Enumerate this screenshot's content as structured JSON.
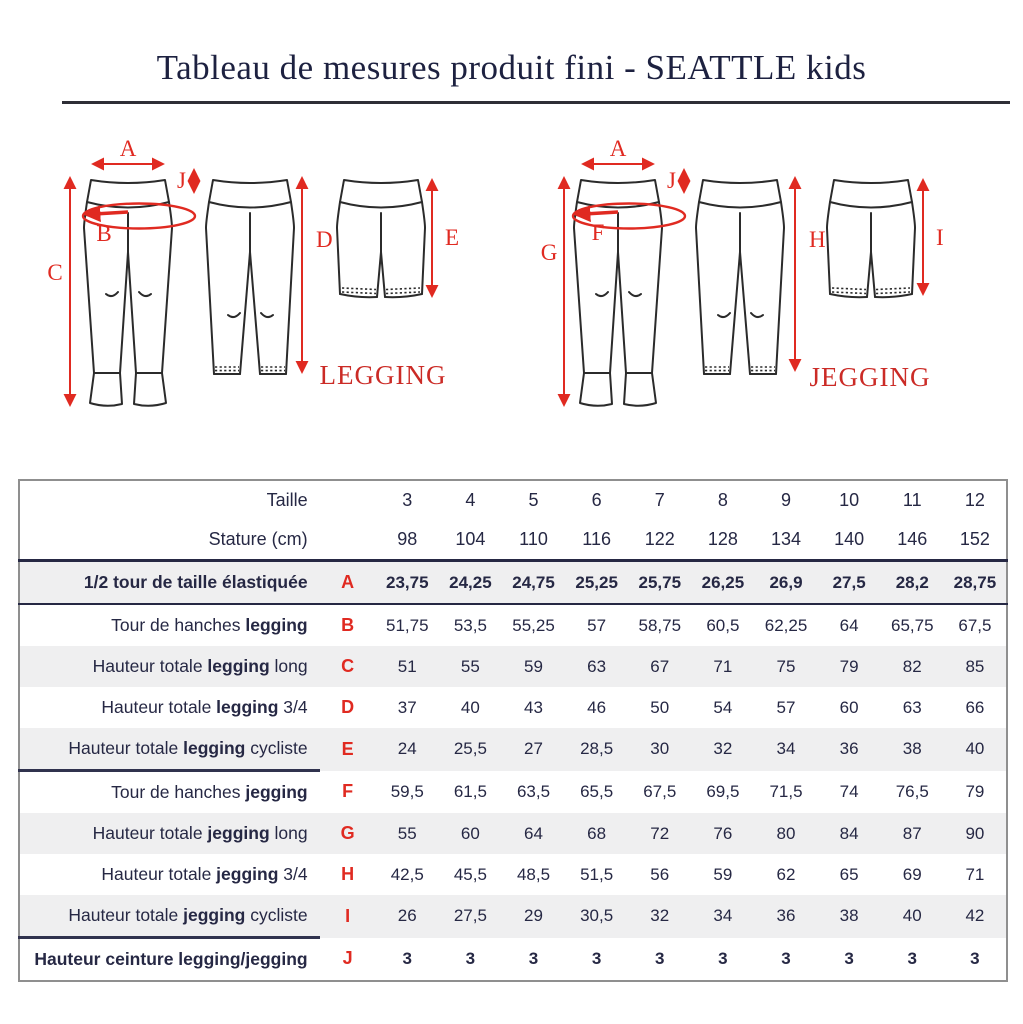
{
  "title": "Tableau de mesures produit fini - SEATTLE kids",
  "colors": {
    "navy_text": "#262844",
    "red_annotation": "#e02a21",
    "red_caption": "#cb2b26",
    "row_shading": "#efeff0",
    "outer_border": "#8f8f8f",
    "drawing_ink": "#2b2b2b"
  },
  "diagrams": {
    "legging": {
      "caption": "LEGGING",
      "labels": {
        "width": "A",
        "waistband": "J",
        "hip": "B",
        "long": "C",
        "three_quarter": "D",
        "cycliste": "E"
      }
    },
    "jegging": {
      "caption": "JEGGING",
      "labels": {
        "width": "A",
        "waistband": "J",
        "hip": "F",
        "long": "G",
        "three_quarter": "H",
        "cycliste": "I"
      }
    }
  },
  "table": {
    "size_row": {
      "label": "Taille",
      "values": [
        "3",
        "4",
        "5",
        "6",
        "7",
        "8",
        "9",
        "10",
        "11",
        "12"
      ]
    },
    "stature_row": {
      "label": "Stature (cm)",
      "values": [
        "98",
        "104",
        "110",
        "116",
        "122",
        "128",
        "134",
        "140",
        "146",
        "152"
      ]
    },
    "rows": [
      {
        "letter": "A",
        "pre": "",
        "bold": "1/2 tour de taille élastiquée",
        "post": "",
        "values": [
          "23,75",
          "24,25",
          "24,75",
          "25,25",
          "25,75",
          "26,25",
          "26,9",
          "27,5",
          "28,2",
          "28,75"
        ],
        "shaded": true,
        "values_bold": true,
        "divider_after": true
      },
      {
        "letter": "B",
        "pre": "Tour de hanches ",
        "bold": "legging",
        "post": "",
        "values": [
          "51,75",
          "53,5",
          "55,25",
          "57",
          "58,75",
          "60,5",
          "62,25",
          "64",
          "65,75",
          "67,5"
        ],
        "shaded": false
      },
      {
        "letter": "C",
        "pre": "Hauteur totale ",
        "bold": "legging",
        "post": " long",
        "values": [
          "51",
          "55",
          "59",
          "63",
          "67",
          "71",
          "75",
          "79",
          "82",
          "85"
        ],
        "shaded": true
      },
      {
        "letter": "D",
        "pre": "Hauteur totale ",
        "bold": "legging",
        "post": " 3/4",
        "values": [
          "37",
          "40",
          "43",
          "46",
          "50",
          "54",
          "57",
          "60",
          "63",
          "66"
        ],
        "shaded": false
      },
      {
        "letter": "E",
        "pre": "Hauteur totale ",
        "bold": "legging",
        "post": " cycliste",
        "values": [
          "24",
          "25,5",
          "27",
          "28,5",
          "30",
          "32",
          "34",
          "36",
          "38",
          "40"
        ],
        "shaded": true,
        "label_underline": true
      },
      {
        "letter": "F",
        "pre": "Tour de hanches ",
        "bold": "jegging",
        "post": "",
        "values": [
          "59,5",
          "61,5",
          "63,5",
          "65,5",
          "67,5",
          "69,5",
          "71,5",
          "74",
          "76,5",
          "79"
        ],
        "shaded": false
      },
      {
        "letter": "G",
        "pre": "Hauteur totale ",
        "bold": "jegging",
        "post": " long",
        "values": [
          "55",
          "60",
          "64",
          "68",
          "72",
          "76",
          "80",
          "84",
          "87",
          "90"
        ],
        "shaded": true
      },
      {
        "letter": "H",
        "pre": "Hauteur totale ",
        "bold": "jegging",
        "post": " 3/4",
        "values": [
          "42,5",
          "45,5",
          "48,5",
          "51,5",
          "56",
          "59",
          "62",
          "65",
          "69",
          "71"
        ],
        "shaded": false
      },
      {
        "letter": "I",
        "pre": "Hauteur totale ",
        "bold": "jegging",
        "post": " cycliste",
        "values": [
          "26",
          "27,5",
          "29",
          "30,5",
          "32",
          "34",
          "36",
          "38",
          "40",
          "42"
        ],
        "shaded": true,
        "label_underline": true
      },
      {
        "letter": "J",
        "pre": "",
        "bold": "Hauteur ceinture legging/jegging",
        "post": "",
        "values": [
          "3",
          "3",
          "3",
          "3",
          "3",
          "3",
          "3",
          "3",
          "3",
          "3"
        ],
        "shaded": false,
        "values_bold": true
      }
    ]
  }
}
